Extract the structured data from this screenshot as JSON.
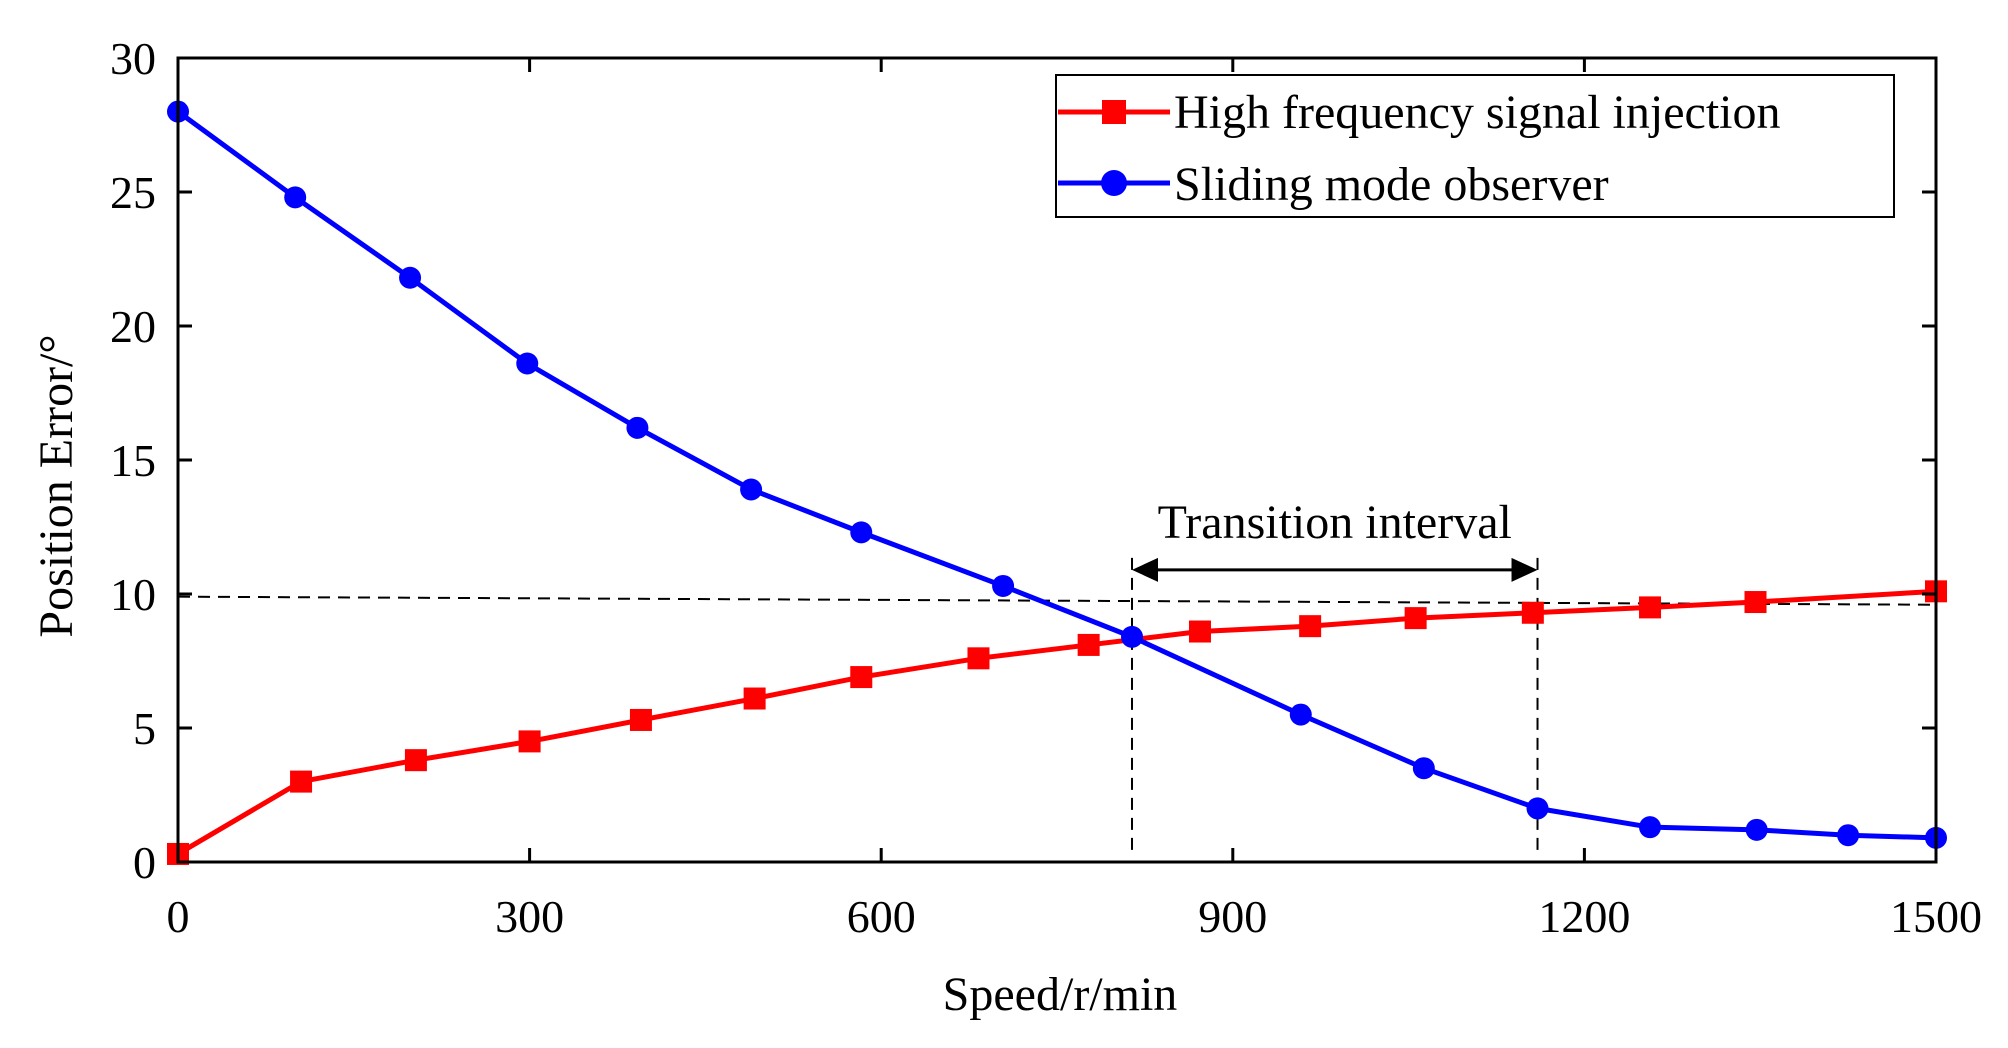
{
  "chart_data": {
    "type": "line",
    "xlabel": "Speed/r/min",
    "ylabel": "Position Error/°",
    "xlim": [
      0,
      1500
    ],
    "ylim": [
      0,
      30
    ],
    "xticks": [
      0,
      300,
      600,
      900,
      1200,
      1500
    ],
    "yticks": [
      0,
      5,
      10,
      15,
      20,
      25,
      30
    ],
    "grid": false,
    "legend_position": "top-right",
    "series": [
      {
        "name": "High frequency signal injection",
        "color": "#ff0000",
        "marker": "square",
        "x": [
          0,
          105,
          203,
          300,
          395,
          492,
          583,
          683,
          777,
          872,
          966,
          1056,
          1156,
          1256,
          1346,
          1500
        ],
        "y": [
          0.3,
          3.0,
          3.8,
          4.5,
          5.3,
          6.1,
          6.9,
          7.6,
          8.1,
          8.6,
          8.8,
          9.1,
          9.3,
          9.5,
          9.7,
          10.1
        ]
      },
      {
        "name": "Sliding mode observer",
        "color": "#0000ff",
        "marker": "circle",
        "x": [
          0,
          100,
          198,
          298,
          392,
          489,
          583,
          704,
          814,
          958,
          1063,
          1160,
          1256,
          1347,
          1425,
          1500
        ],
        "y": [
          28.0,
          24.8,
          21.8,
          18.6,
          16.2,
          13.9,
          12.3,
          10.3,
          8.4,
          5.5,
          3.5,
          2.0,
          1.3,
          1.2,
          1.0,
          0.9
        ]
      }
    ],
    "annotations": {
      "interval_label": "Transition interval",
      "interval_start": 814,
      "interval_end": 1160,
      "reference_line": {
        "x_start": 0,
        "y_start": 9.9,
        "x_end": 1500,
        "y_end": 9.6
      }
    }
  }
}
